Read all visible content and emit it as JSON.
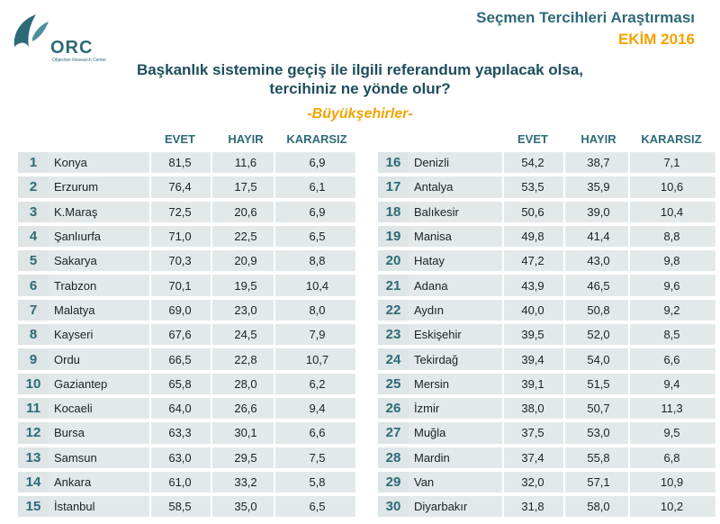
{
  "brand": {
    "logo_text": "ORC",
    "logo_subtext": "Objective Research Center",
    "title": "Seçmen Tercihleri Araştırması",
    "date": "EKİM 2016"
  },
  "colors": {
    "primary": "#2d6a78",
    "accent": "#f2a300",
    "row_bg": "#e3e9ea"
  },
  "chart_data": {
    "type": "table",
    "title_line1": "Başkanlık sistemine geçiş ile ilgili referandum yapılacak olsa,",
    "title_line2": "tercihiniz ne yönde olur?",
    "subtitle": "-Büyükşehirler-",
    "columns": [
      "EVET",
      "HAYIR",
      "KARARSIZ"
    ],
    "rows": [
      {
        "rank": "1",
        "city": "Konya",
        "evet": "81,5",
        "hayir": "11,6",
        "kararsiz": "6,9"
      },
      {
        "rank": "2",
        "city": "Erzurum",
        "evet": "76,4",
        "hayir": "17,5",
        "kararsiz": "6,1"
      },
      {
        "rank": "3",
        "city": "K.Maraş",
        "evet": "72,5",
        "hayir": "20,6",
        "kararsiz": "6,9"
      },
      {
        "rank": "4",
        "city": "Şanlıurfa",
        "evet": "71,0",
        "hayir": "22,5",
        "kararsiz": "6,5"
      },
      {
        "rank": "5",
        "city": "Sakarya",
        "evet": "70,3",
        "hayir": "20,9",
        "kararsiz": "8,8"
      },
      {
        "rank": "6",
        "city": "Trabzon",
        "evet": "70,1",
        "hayir": "19,5",
        "kararsiz": "10,4"
      },
      {
        "rank": "7",
        "city": "Malatya",
        "evet": "69,0",
        "hayir": "23,0",
        "kararsiz": "8,0"
      },
      {
        "rank": "8",
        "city": "Kayseri",
        "evet": "67,6",
        "hayir": "24,5",
        "kararsiz": "7,9"
      },
      {
        "rank": "9",
        "city": "Ordu",
        "evet": "66,5",
        "hayir": "22,8",
        "kararsiz": "10,7"
      },
      {
        "rank": "10",
        "city": "Gaziantep",
        "evet": "65,8",
        "hayir": "28,0",
        "kararsiz": "6,2"
      },
      {
        "rank": "11",
        "city": "Kocaeli",
        "evet": "64,0",
        "hayir": "26,6",
        "kararsiz": "9,4"
      },
      {
        "rank": "12",
        "city": "Bursa",
        "evet": "63,3",
        "hayir": "30,1",
        "kararsiz": "6,6"
      },
      {
        "rank": "13",
        "city": "Samsun",
        "evet": "63,0",
        "hayir": "29,5",
        "kararsiz": "7,5"
      },
      {
        "rank": "14",
        "city": "Ankara",
        "evet": "61,0",
        "hayir": "33,2",
        "kararsiz": "5,8"
      },
      {
        "rank": "15",
        "city": "İstanbul",
        "evet": "58,5",
        "hayir": "35,0",
        "kararsiz": "6,5"
      },
      {
        "rank": "16",
        "city": "Denizli",
        "evet": "54,2",
        "hayir": "38,7",
        "kararsiz": "7,1"
      },
      {
        "rank": "17",
        "city": "Antalya",
        "evet": "53,5",
        "hayir": "35,9",
        "kararsiz": "10,6"
      },
      {
        "rank": "18",
        "city": "Balıkesir",
        "evet": "50,6",
        "hayir": "39,0",
        "kararsiz": "10,4"
      },
      {
        "rank": "19",
        "city": "Manisa",
        "evet": "49,8",
        "hayir": "41,4",
        "kararsiz": "8,8"
      },
      {
        "rank": "20",
        "city": "Hatay",
        "evet": "47,2",
        "hayir": "43,0",
        "kararsiz": "9,8"
      },
      {
        "rank": "21",
        "city": "Adana",
        "evet": "43,9",
        "hayir": "46,5",
        "kararsiz": "9,6"
      },
      {
        "rank": "22",
        "city": "Aydın",
        "evet": "40,0",
        "hayir": "50,8",
        "kararsiz": "9,2"
      },
      {
        "rank": "23",
        "city": "Eskişehir",
        "evet": "39,5",
        "hayir": "52,0",
        "kararsiz": "8,5"
      },
      {
        "rank": "24",
        "city": "Tekirdağ",
        "evet": "39,4",
        "hayir": "54,0",
        "kararsiz": "6,6"
      },
      {
        "rank": "25",
        "city": "Mersin",
        "evet": "39,1",
        "hayir": "51,5",
        "kararsiz": "9,4"
      },
      {
        "rank": "26",
        "city": "İzmir",
        "evet": "38,0",
        "hayir": "50,7",
        "kararsiz": "11,3"
      },
      {
        "rank": "27",
        "city": "Muğla",
        "evet": "37,5",
        "hayir": "53,0",
        "kararsiz": "9,5"
      },
      {
        "rank": "28",
        "city": "Mardin",
        "evet": "37,4",
        "hayir": "55,8",
        "kararsiz": "6,8"
      },
      {
        "rank": "29",
        "city": "Van",
        "evet": "32,0",
        "hayir": "57,1",
        "kararsiz": "10,9"
      },
      {
        "rank": "30",
        "city": "Diyarbakır",
        "evet": "31,8",
        "hayir": "58,0",
        "kararsiz": "10,2"
      }
    ]
  }
}
